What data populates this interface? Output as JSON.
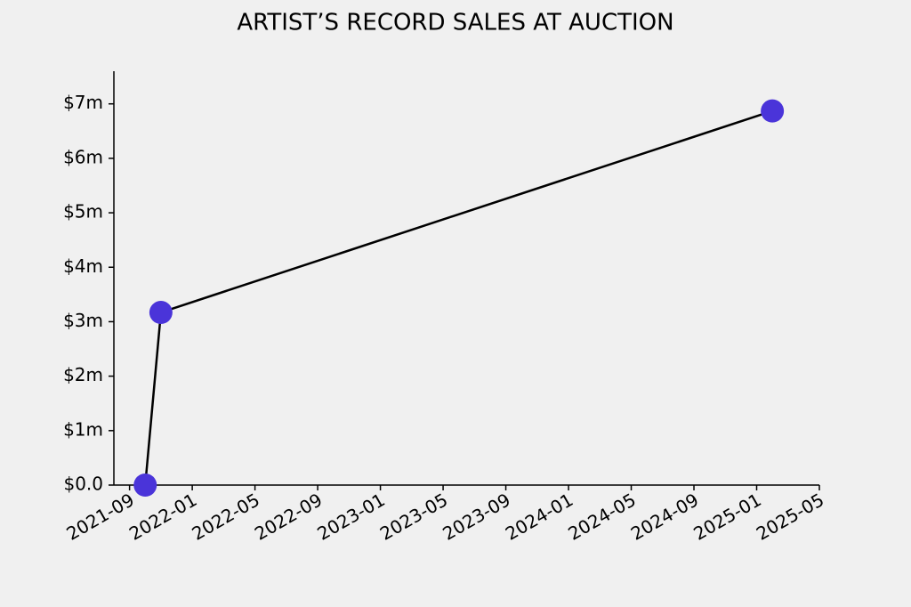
{
  "chart_data": {
    "type": "line",
    "title": "ARTIST’S RECORD SALES AT AUCTION",
    "x": [
      "2021-10",
      "2021-11",
      "2025-02"
    ],
    "series": [
      {
        "color": "#4a34d9",
        "values": [
          0,
          3170000,
          6870000
        ]
      }
    ],
    "xlim": [
      "2021-08",
      "2025-05"
    ],
    "xticks": [
      "2021-09",
      "2022-01",
      "2022-05",
      "2022-09",
      "2023-01",
      "2023-05",
      "2023-09",
      "2024-01",
      "2024-05",
      "2024-09",
      "2025-01",
      "2025-05"
    ],
    "ylim": [
      0,
      7600000
    ],
    "yticks": [
      {
        "value": 0,
        "label": "$0.0"
      },
      {
        "value": 1000000,
        "label": "$1m"
      },
      {
        "value": 2000000,
        "label": "$2m"
      },
      {
        "value": 3000000,
        "label": "$3m"
      },
      {
        "value": 4000000,
        "label": "$4m"
      },
      {
        "value": 5000000,
        "label": "$5m"
      },
      {
        "value": 6000000,
        "label": "$6m"
      },
      {
        "value": 7000000,
        "label": "$7m"
      }
    ],
    "grid": false
  }
}
